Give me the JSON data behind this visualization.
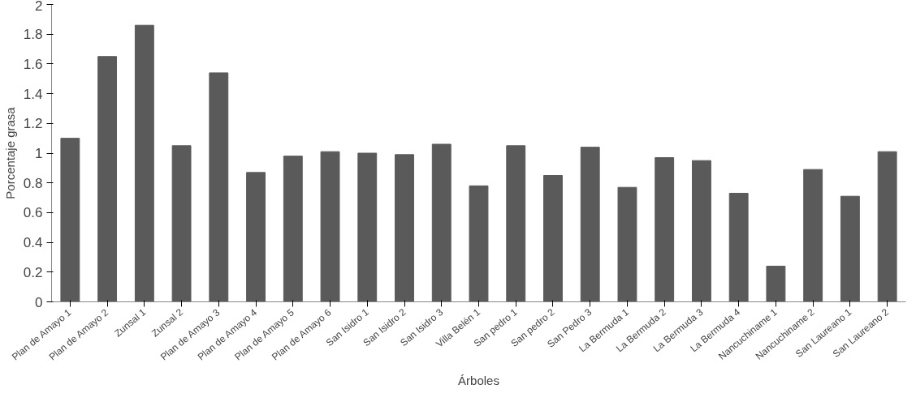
{
  "chart_data": {
    "type": "bar",
    "xlabel": "Árboles",
    "ylabel": "Porcentaje grasa",
    "categories": [
      "Plan de Amayo 1",
      "Plan de Amayo 2",
      "Zunsal 1",
      "Zunsal 2",
      "Plan de Amayo 3",
      "Plan de Amayo 4",
      "Plan de Amayo 5",
      "Plan de Amayo 6",
      "San Isidro 1",
      "San Isidro 2",
      "San Isidro 3",
      "Villa Belén 1",
      "San pedro 1",
      "San pedro 2",
      "San Pedro 3",
      "La Bermuda 1",
      "La Bermuda 2",
      "La Bermuda 3",
      "La Bermuda 4",
      "Nancuchiname 1",
      "Nancuchiname 2",
      "San Laureano 1",
      "San Laureano 2"
    ],
    "values": [
      1.1,
      1.65,
      1.86,
      1.05,
      1.54,
      0.87,
      0.98,
      1.01,
      1.0,
      0.99,
      1.06,
      0.78,
      1.05,
      0.85,
      1.04,
      0.77,
      0.97,
      0.95,
      0.73,
      0.24,
      0.89,
      0.71,
      1.01
    ],
    "color": "#5a5a5a",
    "ylim": [
      0,
      2
    ],
    "yticks": [
      0,
      0.2,
      0.4,
      0.6,
      0.8,
      1,
      1.2,
      1.4,
      1.6,
      1.8,
      2
    ],
    "grid": false
  }
}
